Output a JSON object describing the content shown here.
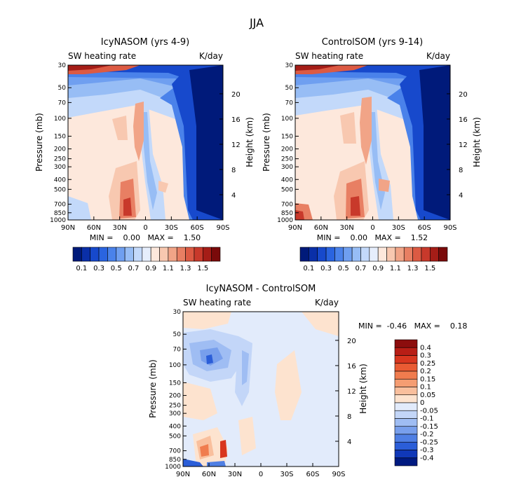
{
  "figure": {
    "season_title": "JJA"
  },
  "chart_data": [
    {
      "type": "heatmap",
      "title": "IcyNASOM (yrs 4-9)",
      "left_label": "SW heating rate",
      "right_label": "K/day",
      "ylabel": "Pressure (mb)",
      "y2label": "Height (km)",
      "x_ticks": [
        "90N",
        "60N",
        "30N",
        "0",
        "30S",
        "60S",
        "90S"
      ],
      "y_ticks": [
        30,
        50,
        70,
        100,
        150,
        200,
        250,
        300,
        400,
        500,
        700,
        850,
        1000
      ],
      "y2_ticks": [
        20,
        16,
        12,
        8,
        4
      ],
      "stats_text": "MIN =    0.00   MAX =    1.50",
      "min": 0.0,
      "max": 1.5,
      "colorbar": {
        "orientation": "horizontal",
        "tick_labels": [
          "0.1",
          "0.3",
          "0.5",
          "0.7",
          "0.9",
          "1.1",
          "1.3",
          "1.5"
        ],
        "colors": [
          "#001a7a",
          "#0a2fa8",
          "#1749cc",
          "#2a64e0",
          "#4a82ea",
          "#6f9ff0",
          "#97bdf5",
          "#c3d9fa",
          "#e6eefc",
          "#fde8dc",
          "#f8c8b0",
          "#f1a487",
          "#e87f63",
          "#dc5a43",
          "#c8392b",
          "#a51d17",
          "#7a0a0a"
        ]
      }
    },
    {
      "type": "heatmap",
      "title": "ControlSOM (yrs 9-14)",
      "left_label": "SW heating rate",
      "right_label": "K/day",
      "ylabel": "Pressure (mb)",
      "y2label": "Height (km)",
      "x_ticks": [
        "90N",
        "60N",
        "30N",
        "0",
        "30S",
        "60S",
        "90S"
      ],
      "y_ticks": [
        30,
        50,
        70,
        100,
        150,
        200,
        250,
        300,
        400,
        500,
        700,
        850,
        1000
      ],
      "y2_ticks": [
        20,
        16,
        12,
        8,
        4
      ],
      "stats_text": "MIN =    0.00   MAX =    1.52",
      "min": 0.0,
      "max": 1.52,
      "colorbar": {
        "orientation": "horizontal",
        "tick_labels": [
          "0.1",
          "0.3",
          "0.5",
          "0.7",
          "0.9",
          "1.1",
          "1.3",
          "1.5"
        ],
        "colors": [
          "#001a7a",
          "#0a2fa8",
          "#1749cc",
          "#2a64e0",
          "#4a82ea",
          "#6f9ff0",
          "#97bdf5",
          "#c3d9fa",
          "#e6eefc",
          "#fde8dc",
          "#f8c8b0",
          "#f1a487",
          "#e87f63",
          "#dc5a43",
          "#c8392b",
          "#a51d17",
          "#7a0a0a"
        ]
      }
    },
    {
      "type": "heatmap",
      "title": "IcyNASOM - ControlSOM",
      "left_label": "SW heating rate",
      "right_label": "K/day",
      "ylabel": "Pressure (mb)",
      "y2label": "Height (km)",
      "x_ticks": [
        "90N",
        "60N",
        "30N",
        "0",
        "30S",
        "60S",
        "90S"
      ],
      "y_ticks": [
        30,
        50,
        70,
        100,
        150,
        200,
        250,
        300,
        400,
        500,
        700,
        850,
        1000
      ],
      "y2_ticks": [
        20,
        16,
        12,
        8,
        4
      ],
      "stats_text": "MIN =  -0.46   MAX =    0.18",
      "min": -0.46,
      "max": 0.18,
      "colorbar": {
        "orientation": "vertical",
        "tick_labels": [
          "0.4",
          "0.3",
          "0.25",
          "0.2",
          "0.15",
          "0.1",
          "0.05",
          "0",
          "-0.05",
          "-0.1",
          "-0.15",
          "-0.2",
          "-0.25",
          "-0.3",
          "-0.4"
        ],
        "colors": [
          "#8c0d0d",
          "#b81e16",
          "#d8361f",
          "#e95b33",
          "#f07c4e",
          "#f59d72",
          "#f9bf9d",
          "#fde3cf",
          "#e2ebfb",
          "#c3d6f8",
          "#9fbdf3",
          "#789fec",
          "#4f7fe4",
          "#2b5ed8",
          "#1038b8",
          "#001a80"
        ]
      }
    }
  ]
}
